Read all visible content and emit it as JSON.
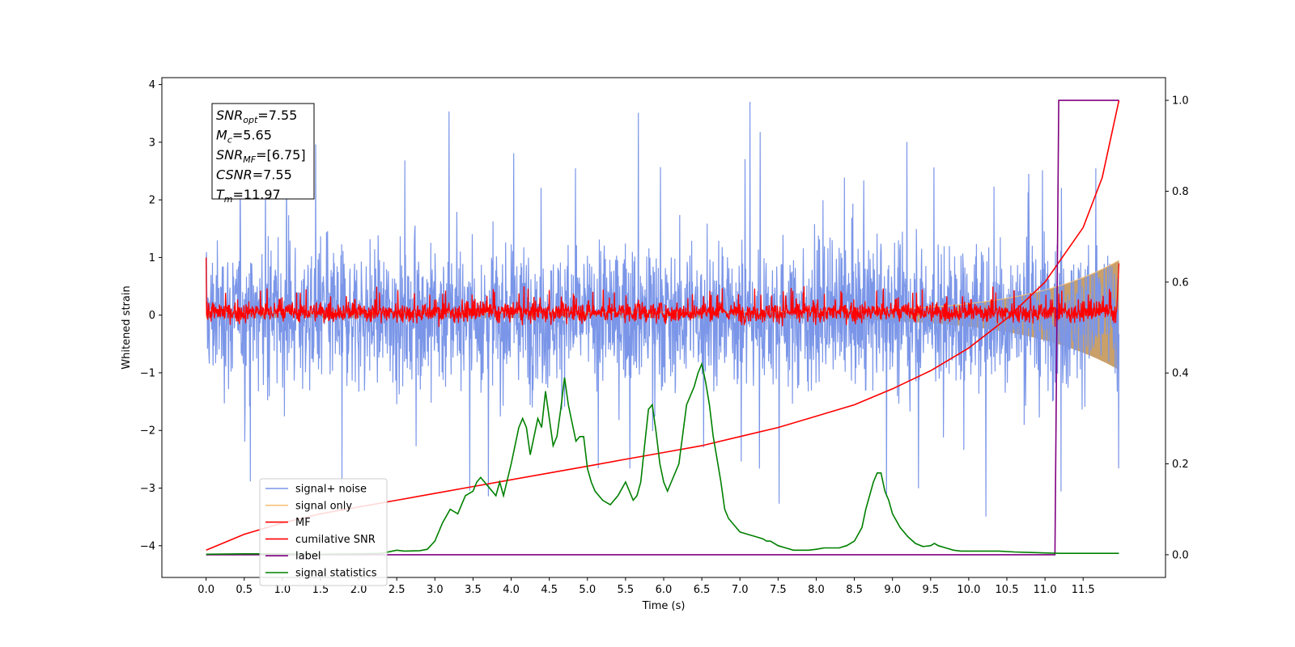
{
  "chart_data": {
    "type": "line",
    "title": "",
    "xlabel": "Time (s)",
    "ylabel": "Whitened strain",
    "xlim": [
      -0.58,
      12.58
    ],
    "ylim": [
      -4.55,
      4.12
    ],
    "ylim_right": [
      -0.05,
      1.05
    ],
    "x_ticks": [
      0.0,
      0.5,
      1.0,
      1.5,
      2.0,
      2.5,
      3.0,
      3.5,
      4.0,
      4.5,
      5.0,
      5.5,
      6.0,
      6.5,
      7.0,
      7.5,
      8.0,
      8.5,
      9.0,
      9.5,
      10.0,
      10.5,
      11.0,
      11.5
    ],
    "x_tick_labels": [
      "0.0",
      "0.5",
      "1.0",
      "1.5",
      "2.0",
      "2.5",
      "3.0",
      "3.5",
      "4.0",
      "4.5",
      "5.0",
      "5.5",
      "6.0",
      "6.5",
      "7.0",
      "7.5",
      "8.0",
      "8.5",
      "9.0",
      "9.5",
      "10.0",
      "10.5",
      "11.0",
      "11.5"
    ],
    "y_ticks": [
      -4,
      -3,
      -2,
      -1,
      0,
      1,
      2,
      3,
      4
    ],
    "y_tick_labels": [
      "−4",
      "−3",
      "−2",
      "−1",
      "0",
      "1",
      "2",
      "3",
      "4"
    ],
    "y_ticks_right": [
      0.0,
      0.2,
      0.4,
      0.6,
      0.8,
      1.0
    ],
    "y_tick_labels_right": [
      "0.0",
      "0.2",
      "0.4",
      "0.6",
      "0.8",
      "1.0"
    ],
    "grid": false,
    "legend_position": "lower-left",
    "annotation": {
      "lines": [
        {
          "base": "SNR",
          "sub": "opt",
          "rest": "=7.55"
        },
        {
          "base": "M",
          "sub": "c",
          "rest": "=5.65"
        },
        {
          "base": "SNR",
          "sub": "MF",
          "rest": "=[6.75]"
        },
        {
          "base": "CSNR",
          "sub": "",
          "rest": "=7.55"
        },
        {
          "base": "T",
          "sub": "m",
          "rest": "=11.97"
        }
      ]
    },
    "series": [
      {
        "name": "signal+ noise",
        "color": "#7b96e8",
        "axis": "left",
        "kind": "noise",
        "x_range": [
          0,
          11.97
        ],
        "mean": 0.0,
        "envelope": [
          -3.5,
          3.7
        ]
      },
      {
        "name": "signal only",
        "color": "#f5c27a",
        "axis": "left",
        "kind": "chirp",
        "x_range": [
          0,
          11.97
        ],
        "amplitude_start": 0.05,
        "amplitude_end": 0.95
      },
      {
        "name": "MF",
        "color": "#ff0000",
        "axis": "left",
        "kind": "noise",
        "x_range": [
          0,
          11.97
        ],
        "mean": 0.05,
        "envelope": [
          -0.25,
          0.5
        ],
        "initial_spike": 1.0
      },
      {
        "name": "cumilative SNR",
        "color": "#ff0000",
        "axis": "right",
        "x": [
          0.0,
          0.5,
          1.0,
          1.5,
          2.0,
          2.5,
          3.0,
          3.5,
          4.0,
          4.5,
          5.0,
          5.5,
          6.0,
          6.5,
          7.0,
          7.5,
          8.0,
          8.5,
          9.0,
          9.5,
          10.0,
          10.5,
          11.0,
          11.5,
          11.75,
          11.97
        ],
        "values": [
          0.01,
          0.045,
          0.07,
          0.09,
          0.105,
          0.12,
          0.135,
          0.15,
          0.165,
          0.18,
          0.195,
          0.21,
          0.225,
          0.24,
          0.26,
          0.28,
          0.305,
          0.33,
          0.365,
          0.405,
          0.455,
          0.52,
          0.6,
          0.72,
          0.83,
          1.0
        ]
      },
      {
        "name": "label",
        "color": "#800080",
        "axis": "right",
        "x": [
          0.0,
          11.13,
          11.18,
          11.97
        ],
        "values": [
          0.0,
          0.0,
          1.0,
          1.0
        ]
      },
      {
        "name": "signal statistics",
        "color": "#008000",
        "axis": "right",
        "x": [
          0.0,
          0.5,
          1.0,
          1.5,
          2.0,
          2.3,
          2.5,
          2.6,
          2.8,
          2.9,
          3.0,
          3.1,
          3.2,
          3.3,
          3.4,
          3.5,
          3.55,
          3.6,
          3.7,
          3.8,
          3.85,
          3.9,
          4.0,
          4.05,
          4.1,
          4.15,
          4.2,
          4.25,
          4.3,
          4.35,
          4.4,
          4.45,
          4.5,
          4.55,
          4.6,
          4.65,
          4.7,
          4.75,
          4.8,
          4.85,
          4.9,
          4.95,
          5.0,
          5.05,
          5.1,
          5.2,
          5.3,
          5.4,
          5.5,
          5.6,
          5.65,
          5.7,
          5.75,
          5.8,
          5.85,
          5.9,
          5.95,
          6.0,
          6.05,
          6.1,
          6.2,
          6.3,
          6.35,
          6.4,
          6.45,
          6.5,
          6.55,
          6.6,
          6.65,
          6.7,
          6.75,
          6.8,
          6.85,
          6.9,
          7.0,
          7.1,
          7.2,
          7.3,
          7.35,
          7.4,
          7.5,
          7.6,
          7.7,
          7.8,
          7.9,
          8.0,
          8.1,
          8.2,
          8.3,
          8.4,
          8.5,
          8.6,
          8.65,
          8.7,
          8.75,
          8.8,
          8.85,
          8.9,
          8.95,
          9.0,
          9.1,
          9.2,
          9.3,
          9.4,
          9.5,
          9.55,
          9.6,
          9.7,
          9.8,
          9.9,
          10.0,
          10.2,
          10.4,
          10.6,
          10.8,
          11.0,
          11.2,
          11.5,
          11.97
        ],
        "values": [
          0.001,
          0.002,
          0.002,
          0.001,
          0.002,
          0.003,
          0.01,
          0.008,
          0.009,
          0.012,
          0.03,
          0.07,
          0.1,
          0.09,
          0.13,
          0.14,
          0.16,
          0.17,
          0.15,
          0.13,
          0.16,
          0.13,
          0.2,
          0.24,
          0.28,
          0.3,
          0.28,
          0.22,
          0.26,
          0.3,
          0.28,
          0.36,
          0.3,
          0.24,
          0.26,
          0.32,
          0.39,
          0.33,
          0.29,
          0.25,
          0.26,
          0.26,
          0.19,
          0.16,
          0.14,
          0.12,
          0.11,
          0.13,
          0.16,
          0.12,
          0.13,
          0.16,
          0.24,
          0.32,
          0.33,
          0.27,
          0.2,
          0.16,
          0.14,
          0.16,
          0.2,
          0.33,
          0.35,
          0.37,
          0.4,
          0.42,
          0.38,
          0.33,
          0.26,
          0.21,
          0.16,
          0.1,
          0.08,
          0.07,
          0.05,
          0.045,
          0.04,
          0.035,
          0.03,
          0.03,
          0.02,
          0.015,
          0.01,
          0.01,
          0.01,
          0.012,
          0.015,
          0.015,
          0.015,
          0.02,
          0.03,
          0.06,
          0.1,
          0.13,
          0.16,
          0.18,
          0.18,
          0.14,
          0.12,
          0.09,
          0.06,
          0.04,
          0.025,
          0.018,
          0.02,
          0.025,
          0.02,
          0.015,
          0.01,
          0.008,
          0.008,
          0.008,
          0.008,
          0.006,
          0.005,
          0.004,
          0.003,
          0.003,
          0.003
        ]
      }
    ]
  }
}
